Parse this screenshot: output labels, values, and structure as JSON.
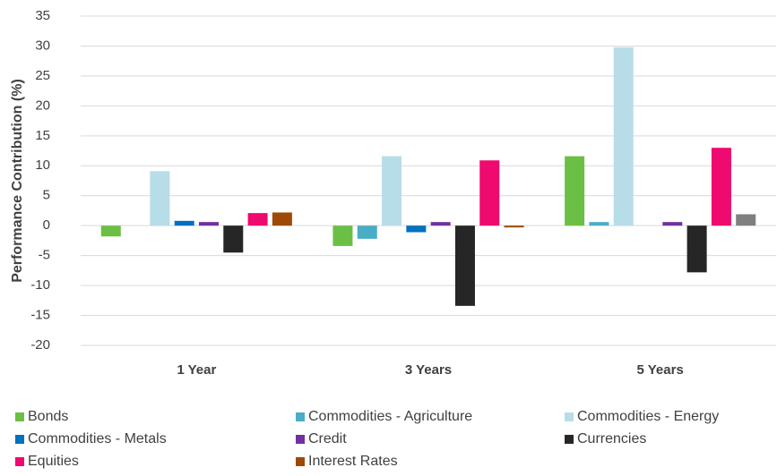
{
  "chart_data": {
    "type": "bar",
    "ylabel": "Performance Contribution (%)",
    "categories": [
      "1 Year",
      "3 Years",
      "5 Years"
    ],
    "series": [
      {
        "name": "Bonds",
        "color": "#6cbf45",
        "values": [
          -1.8,
          -3.4,
          11.6
        ]
      },
      {
        "name": "Commodities - Agriculture",
        "color": "#4bacc6",
        "values": [
          0,
          -2.2,
          0.6
        ]
      },
      {
        "name": "Commodities - Energy",
        "color": "#b7dde8",
        "values": [
          9.1,
          11.6,
          29.8
        ]
      },
      {
        "name": "Commodities - Metals",
        "color": "#0070c0",
        "values": [
          0.8,
          -1.1,
          0
        ]
      },
      {
        "name": "Credit",
        "color": "#7030a0",
        "values": [
          0.6,
          0.6,
          0.6
        ]
      },
      {
        "name": "Currencies",
        "color": "#262626",
        "values": [
          -4.5,
          -13.4,
          -7.8
        ]
      },
      {
        "name": "Equities",
        "color": "#ee0a6e",
        "values": [
          2.1,
          10.9,
          13.0
        ]
      },
      {
        "name": "Interest Rates",
        "color": "#9c4a06",
        "point_colors": [
          "#9c4a06",
          "#9c4a06",
          "#7f7f7f"
        ],
        "values": [
          2.2,
          -0.3,
          1.9
        ]
      }
    ],
    "ylim": [
      -20,
      35
    ],
    "yticks": [
      -20,
      -15,
      -10,
      -5,
      0,
      5,
      10,
      15,
      20,
      25,
      30,
      35
    ],
    "grid": true,
    "legend": "bottom"
  }
}
